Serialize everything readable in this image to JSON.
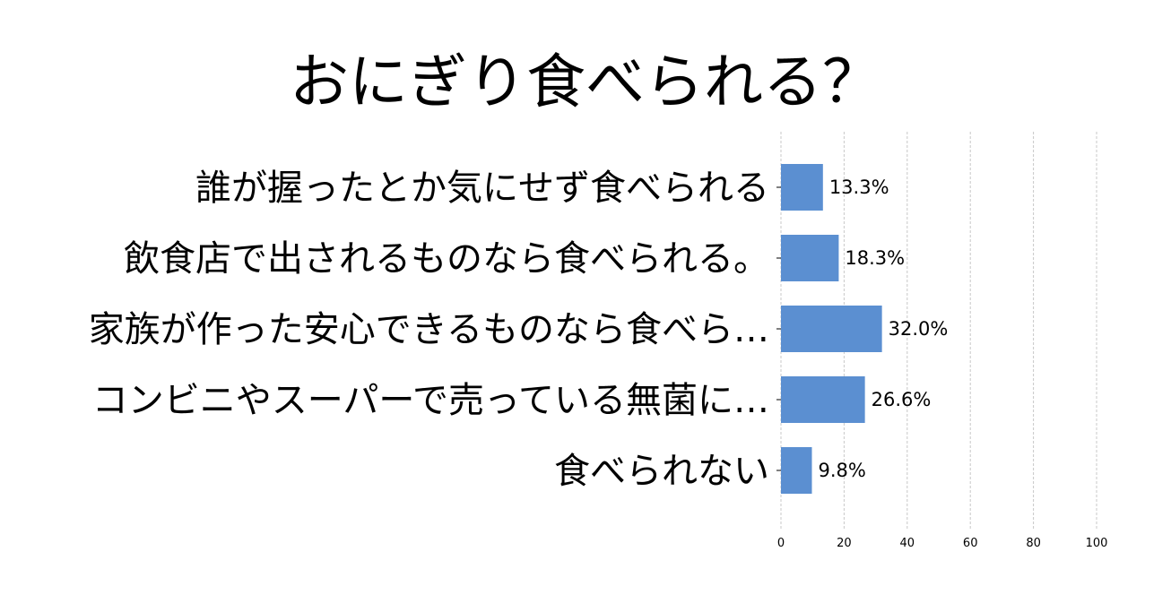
{
  "chart_data": {
    "type": "bar",
    "orientation": "horizontal",
    "title": "おにぎり食べられる？",
    "categories": [
      "誰が握ったとか気にせず食べられる",
      "飲食店で出されるものなら食べられる。",
      "家族が作った安心できるものなら食べら…",
      "コンビニやスーパーで売っている無菌に…",
      "食べられない"
    ],
    "values": [
      13.3,
      18.3,
      32.0,
      26.6,
      9.8
    ],
    "value_labels": [
      "13.3%",
      "18.3%",
      "32.0%",
      "26.6%",
      "9.8%"
    ],
    "xlim": [
      0,
      100
    ],
    "xticks": [
      0,
      20,
      40,
      60,
      80,
      100
    ],
    "xtick_labels": [
      "0",
      "20",
      "40",
      "60",
      "80",
      "100"
    ],
    "grid": true,
    "bar_color": "#5b8fd1"
  }
}
